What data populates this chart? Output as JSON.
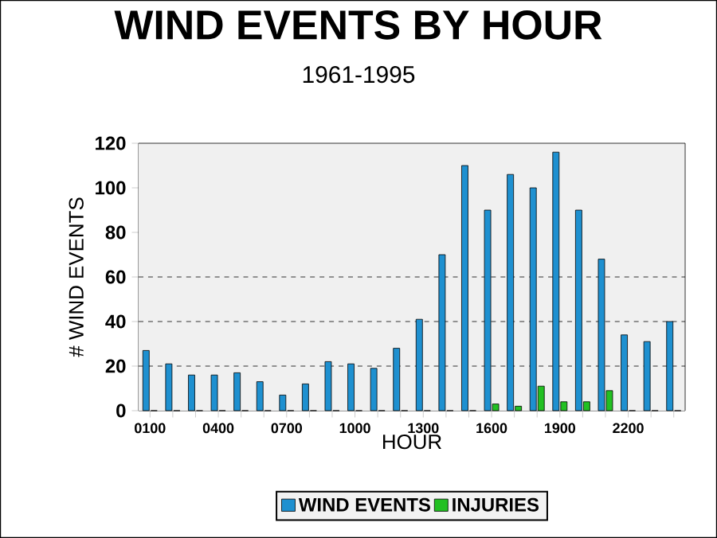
{
  "chart_data": {
    "type": "bar",
    "title": "WIND EVENTS BY HOUR",
    "subtitle": "1961-1995",
    "xlabel": "HOUR",
    "ylabel": "# WIND EVENTS",
    "categories": [
      "0100",
      null,
      null,
      "0400",
      null,
      null,
      "0700",
      null,
      null,
      "1000",
      null,
      null,
      "1300",
      null,
      null,
      "1600",
      null,
      null,
      "1900",
      null,
      null,
      "2200",
      null,
      null
    ],
    "series": [
      {
        "name": "WIND EVENTS",
        "color": "#1e90d0",
        "values": [
          27,
          21,
          16,
          16,
          17,
          13,
          7,
          12,
          22,
          21,
          19,
          28,
          41,
          70,
          110,
          90,
          106,
          100,
          116,
          90,
          68,
          34,
          31,
          40
        ]
      },
      {
        "name": "INJURIES",
        "color": "#22c022",
        "values": [
          0,
          0,
          0,
          0,
          0,
          0,
          0,
          0,
          0,
          0,
          0,
          0,
          0,
          0,
          0,
          3,
          2,
          11,
          4,
          4,
          9,
          0,
          0,
          0
        ]
      }
    ],
    "ylim": [
      0,
      120
    ],
    "yticks": [
      0,
      20,
      40,
      60,
      80,
      100,
      120
    ],
    "ref_lines": [
      {
        "axis": "y",
        "value": 20,
        "line_style": "dashed"
      },
      {
        "axis": "y",
        "value": 40,
        "line_style": "dashed"
      },
      {
        "axis": "y",
        "value": 60,
        "line_style": "dashed"
      }
    ],
    "legend": "bottom"
  }
}
